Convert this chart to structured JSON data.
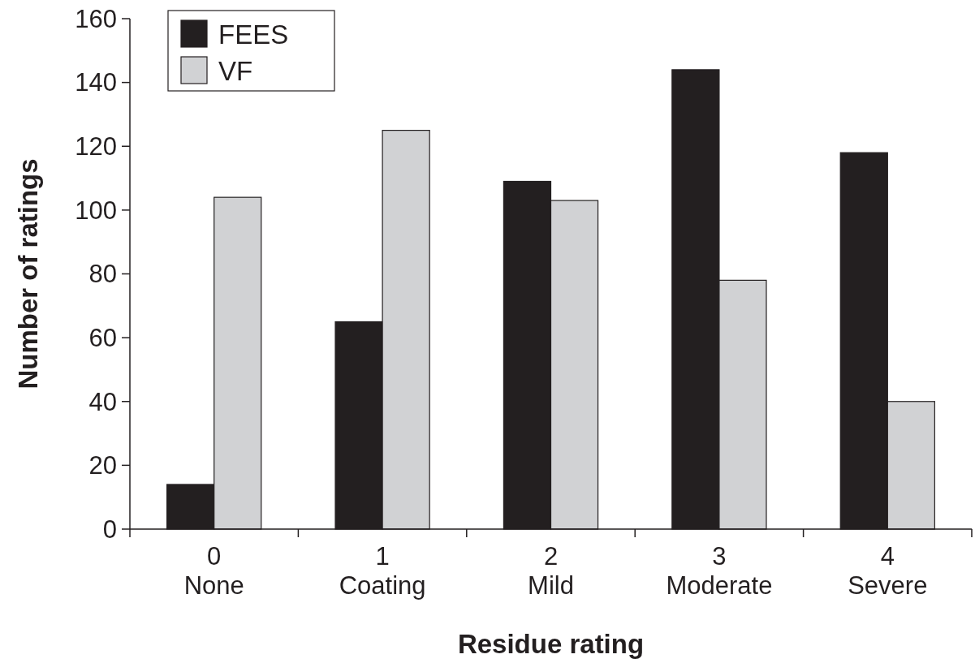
{
  "chart_data": {
    "type": "bar",
    "xlabel": "Residue rating",
    "ylabel": "Number of ratings",
    "categories": [
      "0\nNone",
      "1\nCoating",
      "2\nMild",
      "3\nModerate",
      "4\nSevere"
    ],
    "series": [
      {
        "name": "FEES",
        "color": "#231f20",
        "values": [
          14,
          65,
          109,
          144,
          118
        ]
      },
      {
        "name": "VF",
        "color": "#d1d2d4",
        "values": [
          104,
          125,
          103,
          78,
          40
        ]
      }
    ],
    "ylim": [
      0,
      160
    ],
    "yticks": [
      0,
      20,
      40,
      60,
      80,
      100,
      120,
      140,
      160
    ],
    "grid": false,
    "legend": "top left"
  }
}
